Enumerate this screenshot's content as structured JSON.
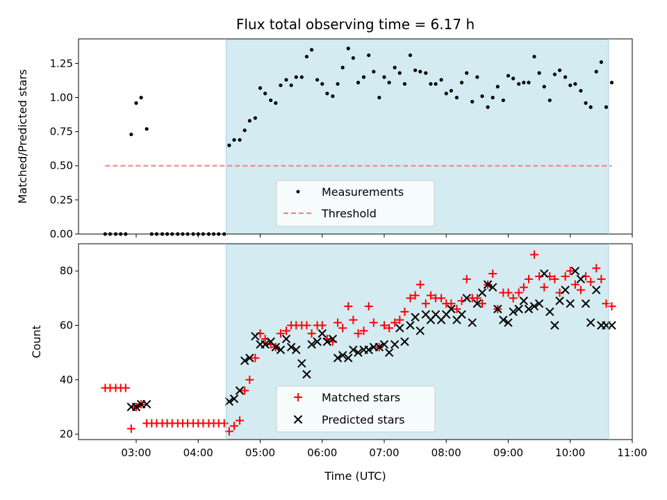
{
  "chart_data": [
    {
      "type": "scatter",
      "title": "Flux total observing time = 6.17 h",
      "xlabel": "",
      "ylabel": "Matched/Predicted stars",
      "ylim": [
        0,
        1.43
      ],
      "yticks": [
        "0.00",
        "0.25",
        "0.50",
        "0.75",
        "1.00",
        "1.25"
      ],
      "ytick_values": [
        0,
        0.25,
        0.5,
        0.75,
        1.0,
        1.25
      ],
      "xlim_hours": [
        2.07,
        11.0
      ],
      "shaded_region_hours": [
        4.45,
        10.62
      ],
      "shaded_color": "#d3ebf1",
      "legend_position": "lower center",
      "series": [
        {
          "name": "Measurements",
          "color": "#000000",
          "x": [
            2.5,
            2.58,
            2.67,
            2.75,
            2.83,
            2.92,
            3.0,
            3.08,
            3.17,
            3.25,
            3.33,
            3.42,
            3.5,
            3.58,
            3.67,
            3.75,
            3.83,
            3.92,
            4.0,
            4.08,
            4.17,
            4.25,
            4.33,
            4.42,
            4.5,
            4.58,
            4.67,
            4.75,
            4.83,
            4.92,
            5.0,
            5.08,
            5.17,
            5.25,
            5.33,
            5.42,
            5.5,
            5.58,
            5.67,
            5.75,
            5.83,
            5.92,
            6.0,
            6.08,
            6.17,
            6.25,
            6.33,
            6.42,
            6.5,
            6.58,
            6.67,
            6.75,
            6.83,
            6.92,
            7.0,
            7.08,
            7.17,
            7.25,
            7.33,
            7.42,
            7.5,
            7.58,
            7.67,
            7.75,
            7.83,
            7.92,
            8.0,
            8.08,
            8.17,
            8.25,
            8.33,
            8.42,
            8.5,
            8.58,
            8.67,
            8.75,
            8.83,
            8.92,
            9.0,
            9.08,
            9.17,
            9.25,
            9.33,
            9.42,
            9.5,
            9.58,
            9.67,
            9.75,
            9.83,
            9.92,
            10.0,
            10.08,
            10.17,
            10.25,
            10.33,
            10.42,
            10.5,
            10.58,
            10.67
          ],
          "y": [
            0,
            0,
            0,
            0,
            0,
            0.73,
            0.96,
            1.0,
            0.77,
            0,
            0,
            0,
            0,
            0,
            0,
            0,
            0,
            0,
            0,
            0,
            0,
            0,
            0,
            0,
            0.65,
            0.69,
            0.69,
            0.76,
            0.83,
            0.85,
            1.07,
            1.03,
            0.98,
            0.96,
            1.09,
            1.13,
            1.09,
            1.15,
            1.15,
            1.3,
            1.35,
            1.13,
            1.1,
            1.03,
            1.01,
            1.1,
            1.22,
            1.36,
            1.29,
            1.11,
            1.15,
            1.31,
            1.19,
            1.0,
            1.15,
            1.11,
            1.22,
            1.18,
            1.1,
            1.31,
            1.2,
            1.19,
            1.18,
            1.1,
            1.1,
            1.13,
            1.03,
            1.05,
            1.0,
            1.11,
            1.18,
            0.97,
            1.15,
            1.01,
            0.93,
            1.0,
            1.08,
            0.98,
            1.16,
            1.14,
            1.1,
            1.11,
            1.11,
            1.3,
            1.18,
            1.08,
            0.98,
            1.17,
            1.2,
            1.15,
            1.09,
            1.1,
            1.05,
            0.96,
            0.93,
            1.19,
            1.26,
            0.93,
            1.11
          ]
        },
        {
          "name": "Threshold",
          "color": "#f08080",
          "style": "dashed",
          "x": [
            2.5,
            10.67
          ],
          "y": [
            0.5,
            0.5
          ]
        }
      ]
    },
    {
      "type": "scatter",
      "title": "",
      "xlabel": "Time (UTC)",
      "ylabel": "Count",
      "ylim": [
        18,
        90
      ],
      "yticks": [
        "20",
        "40",
        "60",
        "80"
      ],
      "ytick_values": [
        20,
        40,
        60,
        80
      ],
      "xticks": [
        "03:00",
        "04:00",
        "05:00",
        "06:00",
        "07:00",
        "08:00",
        "09:00",
        "10:00",
        "11:00"
      ],
      "xtick_values": [
        3,
        4,
        5,
        6,
        7,
        8,
        9,
        10,
        11
      ],
      "xlim_hours": [
        2.07,
        11.0
      ],
      "shaded_region_hours": [
        4.45,
        10.62
      ],
      "shaded_color": "#d3ebf1",
      "legend_position": "lower center",
      "series": [
        {
          "name": "Matched stars",
          "color": "#ff0000",
          "marker": "+",
          "x": [
            2.5,
            2.58,
            2.67,
            2.75,
            2.83,
            2.92,
            3.0,
            3.08,
            3.17,
            3.25,
            3.33,
            3.42,
            3.5,
            3.58,
            3.67,
            3.75,
            3.83,
            3.92,
            4.0,
            4.08,
            4.17,
            4.25,
            4.33,
            4.42,
            4.5,
            4.58,
            4.67,
            4.75,
            4.83,
            4.92,
            5.0,
            5.08,
            5.17,
            5.25,
            5.33,
            5.42,
            5.5,
            5.58,
            5.67,
            5.75,
            5.83,
            5.92,
            6.0,
            6.08,
            6.17,
            6.25,
            6.33,
            6.42,
            6.5,
            6.58,
            6.67,
            6.75,
            6.83,
            6.92,
            7.0,
            7.08,
            7.17,
            7.25,
            7.33,
            7.42,
            7.5,
            7.58,
            7.67,
            7.75,
            7.83,
            7.92,
            8.0,
            8.08,
            8.17,
            8.25,
            8.33,
            8.42,
            8.5,
            8.58,
            8.67,
            8.75,
            8.83,
            8.92,
            9.0,
            9.08,
            9.17,
            9.25,
            9.33,
            9.42,
            9.5,
            9.58,
            9.67,
            9.75,
            9.83,
            9.92,
            10.0,
            10.08,
            10.17,
            10.25,
            10.33,
            10.42,
            10.5,
            10.58,
            10.67
          ],
          "y": [
            37,
            37,
            37,
            37,
            37,
            22,
            30,
            31,
            24,
            24,
            24,
            24,
            24,
            24,
            24,
            24,
            24,
            24,
            24,
            24,
            24,
            24,
            24,
            24,
            21,
            23,
            25,
            36,
            40,
            48,
            57,
            55,
            53,
            52,
            57,
            58,
            60,
            60,
            60,
            60,
            57,
            60,
            60,
            55,
            54,
            61,
            59,
            67,
            62,
            57,
            58,
            67,
            61,
            52,
            60,
            59,
            61,
            62,
            65,
            70,
            71,
            75,
            68,
            71,
            70,
            70,
            68,
            68,
            66,
            69,
            77,
            70,
            70,
            68,
            75,
            79,
            66,
            72,
            72,
            70,
            72,
            74,
            77,
            86,
            78,
            74,
            78,
            77,
            72,
            78,
            80,
            75,
            73,
            78,
            76,
            81,
            77,
            68,
            67
          ]
        },
        {
          "name": "Predicted stars",
          "color": "#000000",
          "marker": "x",
          "x": [
            2.92,
            3.0,
            3.08,
            3.17,
            4.5,
            4.58,
            4.67,
            4.75,
            4.83,
            4.92,
            5.0,
            5.08,
            5.17,
            5.25,
            5.33,
            5.42,
            5.5,
            5.58,
            5.67,
            5.75,
            5.83,
            5.92,
            6.0,
            6.08,
            6.17,
            6.25,
            6.33,
            6.42,
            6.5,
            6.58,
            6.67,
            6.75,
            6.83,
            6.92,
            7.0,
            7.08,
            7.17,
            7.25,
            7.33,
            7.42,
            7.5,
            7.58,
            7.67,
            7.75,
            7.83,
            7.92,
            8.0,
            8.08,
            8.17,
            8.25,
            8.33,
            8.42,
            8.5,
            8.58,
            8.67,
            8.75,
            8.83,
            8.92,
            9.0,
            9.08,
            9.17,
            9.25,
            9.33,
            9.42,
            9.5,
            9.58,
            9.67,
            9.75,
            9.83,
            9.92,
            10.0,
            10.08,
            10.17,
            10.25,
            10.33,
            10.42,
            10.5,
            10.58,
            10.67
          ],
          "y": [
            30,
            30,
            31,
            31,
            32,
            33,
            36,
            47,
            48,
            56,
            53,
            53,
            54,
            52,
            51,
            55,
            52,
            51,
            46,
            42,
            53,
            54,
            57,
            54,
            55,
            48,
            49,
            48,
            51,
            50,
            51,
            51,
            52,
            52,
            53,
            50,
            53,
            59,
            54,
            60,
            63,
            58,
            64,
            62,
            64,
            62,
            64,
            66,
            62,
            64,
            70,
            61,
            68,
            72,
            75,
            74,
            66,
            62,
            61,
            65,
            66,
            69,
            66,
            67,
            68,
            79,
            65,
            60,
            69,
            73,
            68,
            80,
            77,
            68,
            61,
            73,
            60,
            60,
            60
          ]
        }
      ]
    }
  ]
}
